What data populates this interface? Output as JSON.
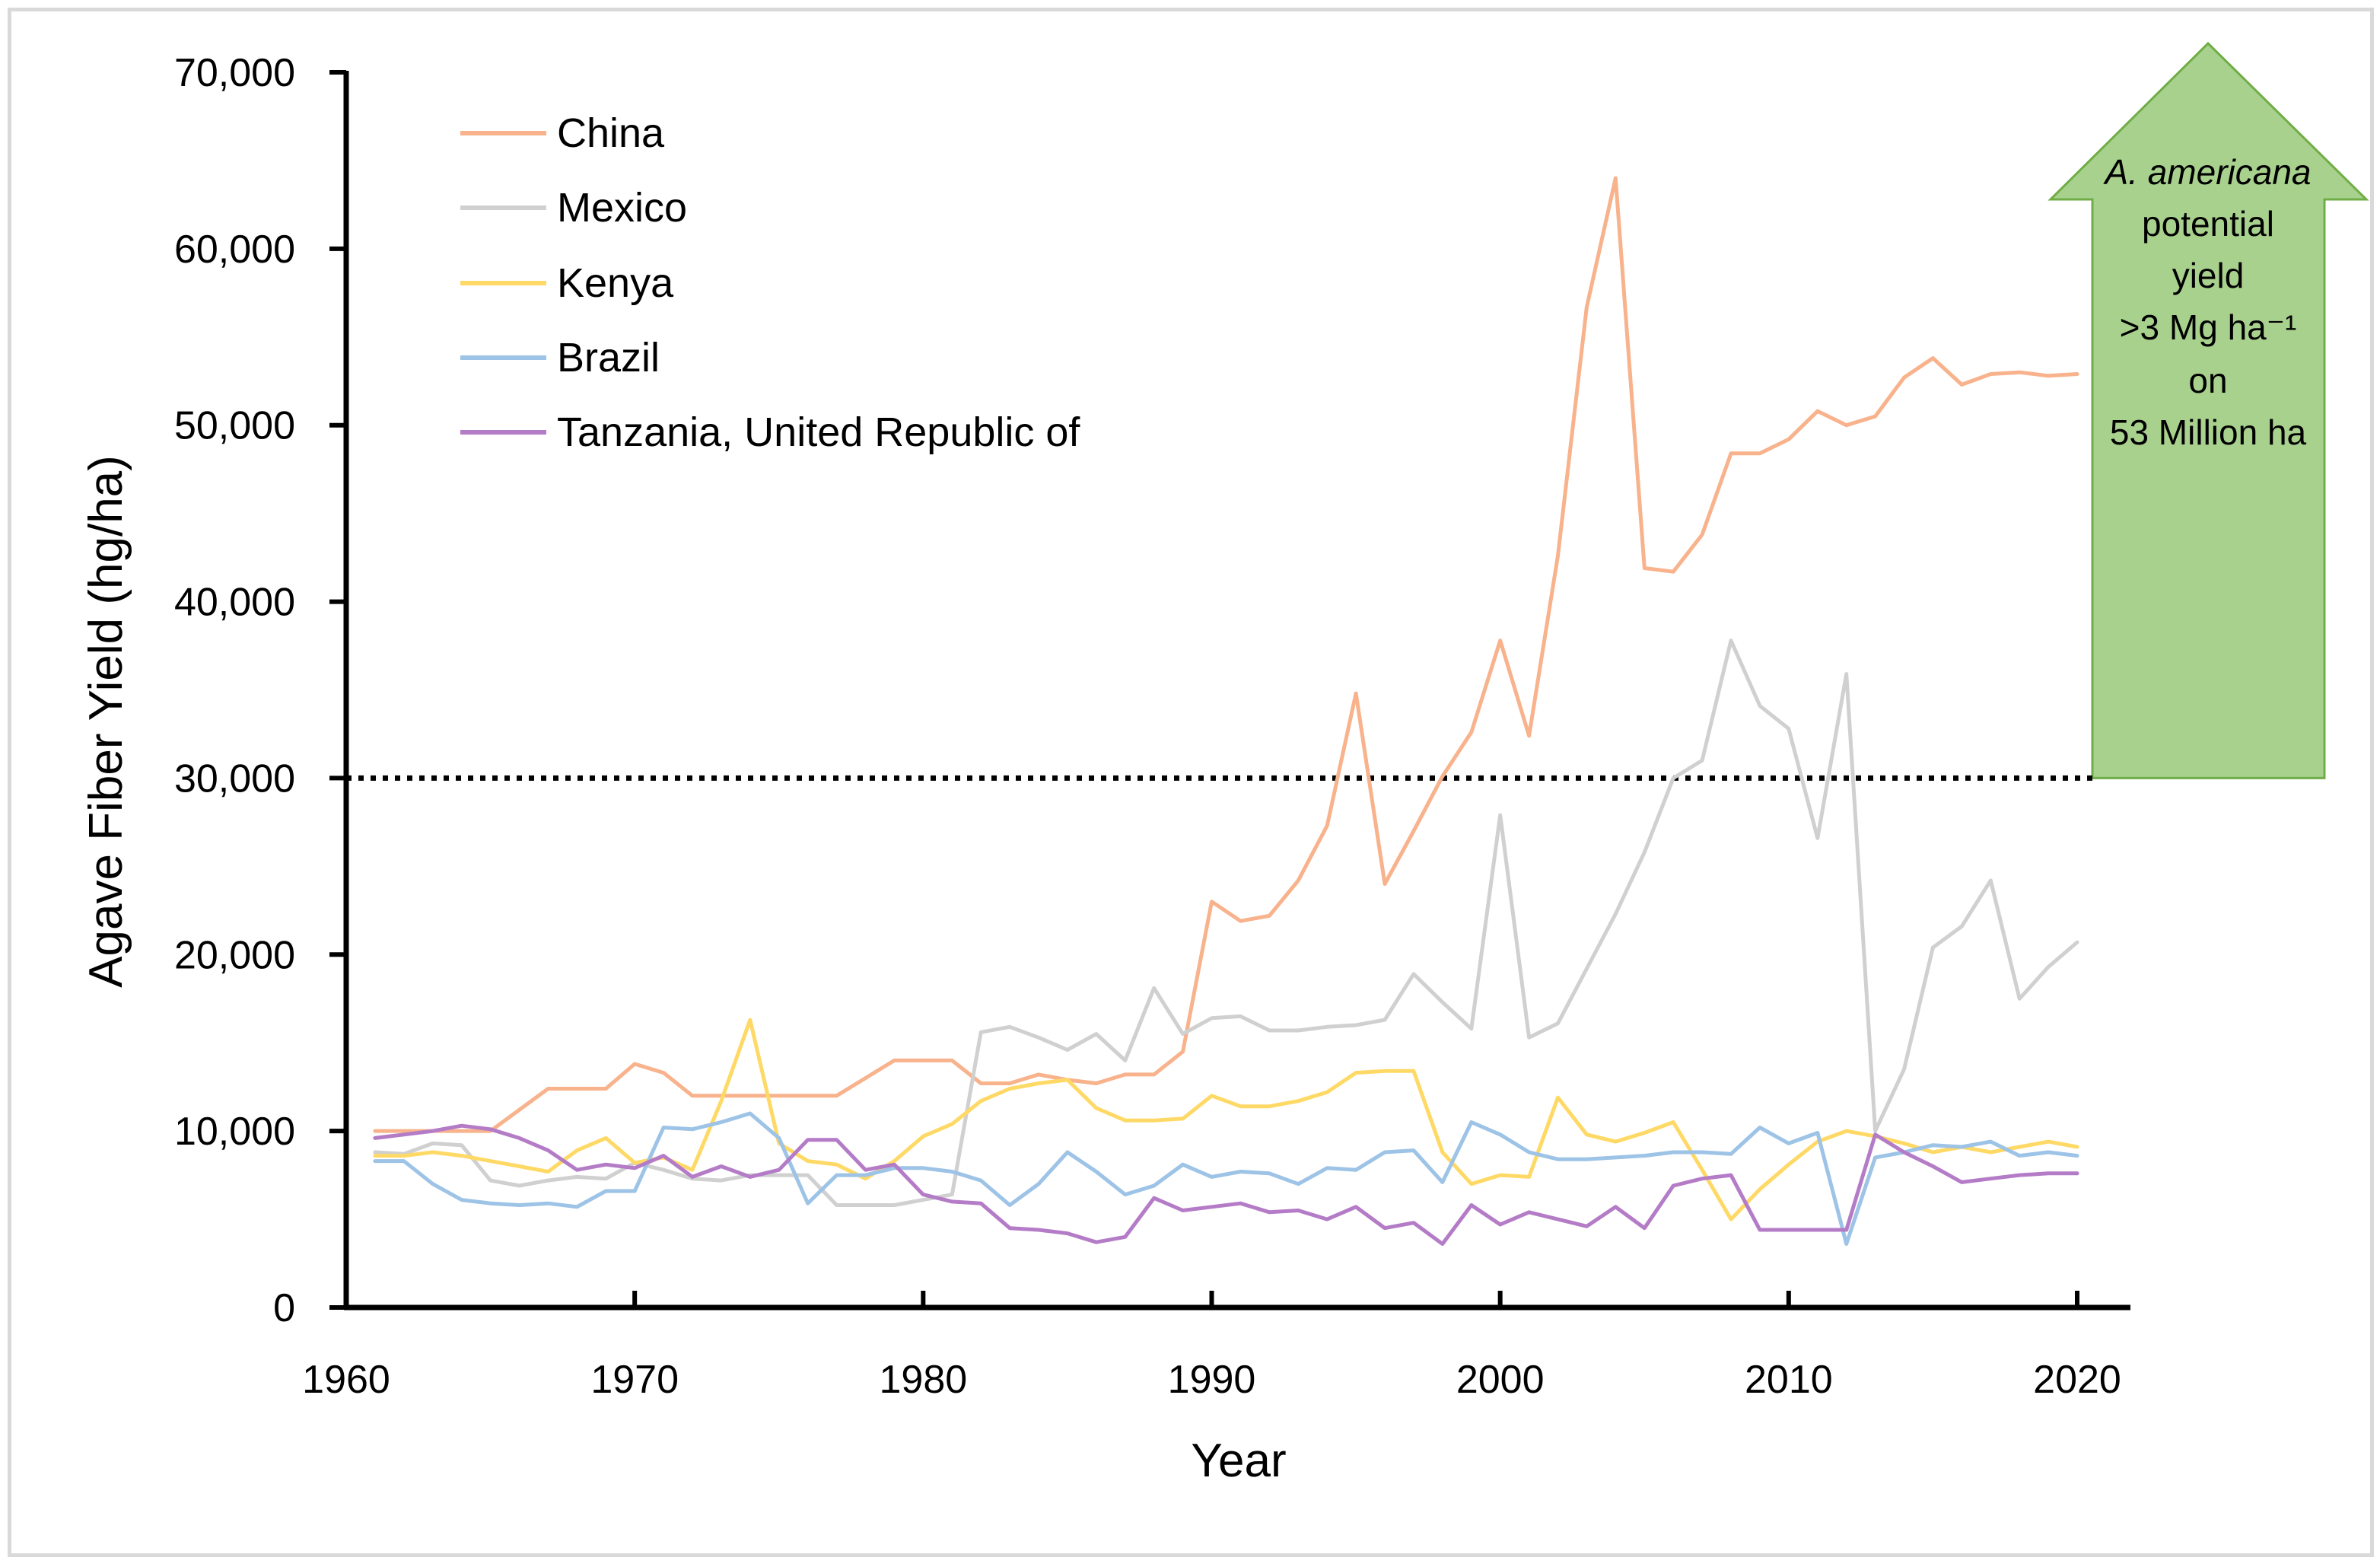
{
  "chart_data": {
    "type": "line",
    "title": "",
    "xlabel": "Year",
    "ylabel": "Agave Fiber Yield (hg/ha)",
    "xlim": [
      1960,
      2020
    ],
    "ylim": [
      0,
      70000
    ],
    "xticks": [
      1960,
      1970,
      1980,
      1990,
      2000,
      2010,
      2020
    ],
    "xtick_labels": [
      "1960",
      "1970",
      "1980",
      "1990",
      "2000",
      "2010",
      "2020"
    ],
    "yticks": [
      0,
      10000,
      20000,
      30000,
      40000,
      50000,
      60000,
      70000
    ],
    "ytick_labels": [
      "0",
      "10,000",
      "20,000",
      "30,000",
      "40,000",
      "50,000",
      "60,000",
      "70,000"
    ],
    "grid": false,
    "legend_position": "top-left",
    "x": [
      1961,
      1962,
      1963,
      1964,
      1965,
      1966,
      1967,
      1968,
      1969,
      1970,
      1971,
      1972,
      1973,
      1974,
      1975,
      1976,
      1977,
      1978,
      1979,
      1980,
      1981,
      1982,
      1983,
      1984,
      1985,
      1986,
      1987,
      1988,
      1989,
      1990,
      1991,
      1992,
      1993,
      1994,
      1995,
      1996,
      1997,
      1998,
      1999,
      2000,
      2001,
      2002,
      2003,
      2004,
      2005,
      2006,
      2007,
      2008,
      2009,
      2010,
      2011,
      2012,
      2013,
      2014,
      2015,
      2016,
      2017,
      2018,
      2019,
      2020
    ],
    "series": [
      {
        "name": "China",
        "color": "#f8b28c",
        "values": [
          10000,
          10000,
          10000,
          10000,
          10000,
          11200,
          12400,
          12400,
          12400,
          13800,
          13300,
          12000,
          12000,
          12000,
          12000,
          12000,
          12000,
          13000,
          14000,
          14000,
          14000,
          12700,
          12700,
          13200,
          12900,
          12700,
          13200,
          13200,
          14500,
          23000,
          21900,
          22200,
          24200,
          27300,
          34800,
          24000,
          27000,
          30100,
          32600,
          37800,
          32400,
          42600,
          56700,
          64000,
          41900,
          41700,
          43800,
          48400,
          48400,
          49200,
          50800,
          50000,
          50500,
          52700,
          53800,
          52300,
          52900,
          53000,
          52800,
          52900
        ]
      },
      {
        "name": "Mexico",
        "color": "#d0d0d0",
        "values": [
          8800,
          8700,
          9300,
          9200,
          7200,
          6900,
          7200,
          7400,
          7300,
          8200,
          7800,
          7300,
          7200,
          7500,
          7500,
          7500,
          5800,
          5800,
          5800,
          6100,
          6400,
          15600,
          15900,
          15300,
          14600,
          15500,
          14000,
          18100,
          15500,
          16400,
          16500,
          15700,
          15700,
          15900,
          16000,
          16300,
          18900,
          17300,
          15800,
          27900,
          15300,
          16100,
          19200,
          22300,
          25800,
          30000,
          31000,
          37800,
          34100,
          32800,
          26600,
          35900,
          10000,
          13500,
          20400,
          21600,
          24200,
          17500,
          19300,
          20700
        ]
      },
      {
        "name": "Kenya",
        "color": "#ffd966",
        "values": [
          8600,
          8600,
          8800,
          8600,
          8300,
          8000,
          7700,
          8900,
          9600,
          8200,
          8500,
          7800,
          11700,
          16300,
          9300,
          8300,
          8100,
          7300,
          8300,
          9700,
          10400,
          11700,
          12400,
          12700,
          12900,
          11300,
          10600,
          10600,
          10700,
          12000,
          11400,
          11400,
          11700,
          12200,
          13300,
          13400,
          13400,
          8800,
          7000,
          7500,
          7400,
          11900,
          9800,
          9400,
          9900,
          10500,
          7800,
          5000,
          6700,
          8100,
          9400,
          10000,
          9700,
          9300,
          8800,
          9100,
          8800,
          9100,
          9400,
          9100
        ]
      },
      {
        "name": "Brazil",
        "color": "#9dc3e6",
        "values": [
          8300,
          8300,
          7000,
          6100,
          5900,
          5800,
          5900,
          5700,
          6600,
          6600,
          10200,
          10100,
          10500,
          11000,
          9600,
          5900,
          7500,
          7500,
          7900,
          7900,
          7700,
          7200,
          5800,
          7000,
          8800,
          7700,
          6400,
          6900,
          8100,
          7400,
          7700,
          7600,
          7000,
          7900,
          7800,
          8800,
          8900,
          7100,
          10500,
          9800,
          8800,
          8400,
          8400,
          8500,
          8600,
          8800,
          8800,
          8700,
          10200,
          9300,
          9900,
          3600,
          8500,
          8800,
          9200,
          9100,
          9400,
          8600,
          8800,
          8600
        ]
      },
      {
        "name": "Tanzania, United Republic of",
        "color": "#b47cc7",
        "values": [
          9600,
          9800,
          10000,
          10300,
          10100,
          9600,
          8900,
          7800,
          8100,
          7900,
          8600,
          7400,
          8000,
          7400,
          7800,
          9500,
          9500,
          7800,
          8100,
          6400,
          6000,
          5900,
          4500,
          4400,
          4200,
          3700,
          4000,
          6200,
          5500,
          5700,
          5900,
          5400,
          5500,
          5000,
          5700,
          4500,
          4800,
          3600,
          5800,
          4700,
          5400,
          5000,
          4600,
          5700,
          4500,
          6900,
          7300,
          7500,
          4400,
          4400,
          4400,
          4400,
          9800,
          8800,
          8000,
          7100,
          7300,
          7500,
          7600,
          7600
        ]
      }
    ],
    "reference_line": {
      "value": 30000,
      "style": "dotted",
      "color": "#000000"
    },
    "annotation": {
      "lines": [
        "A. americana",
        "potential",
        "yield",
        ">3 Mg ha⁻¹",
        "on",
        "53 Million ha"
      ],
      "fill_color": "#a9d18e",
      "border_color": "#70ad47",
      "shape": "up-arrow"
    }
  }
}
